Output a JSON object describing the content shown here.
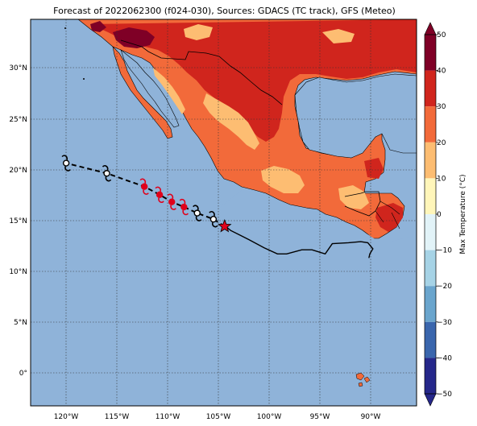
{
  "title": "Forecast of 2022062300 (f024-030), Sources: GDACS (TC track), GFS (Meteo)",
  "colors": {
    "ocean": "#8fb3d9",
    "lake": "#8fb3d9",
    "border": "#000000",
    "track_past": "#000000",
    "track_forecast_marker": "#e0001b",
    "star": "#e0001b"
  },
  "colorbar": {
    "label": "Max Temperature (°C)",
    "ticks": [
      "50",
      "40",
      "30",
      "20",
      "10",
      "0",
      "−10",
      "−20",
      "−30",
      "−40",
      "−50"
    ],
    "bands": [
      {
        "range": [
          40,
          50
        ],
        "color": "#7f0026"
      },
      {
        "range": [
          30,
          40
        ],
        "color": "#d0251d"
      },
      {
        "range": [
          20,
          30
        ],
        "color": "#f26a3a"
      },
      {
        "range": [
          10,
          20
        ],
        "color": "#fdbd72"
      },
      {
        "range": [
          0,
          10
        ],
        "color": "#fff6ba"
      },
      {
        "range": [
          -10,
          0
        ],
        "color": "#e2f3f8"
      },
      {
        "range": [
          -20,
          -10
        ],
        "color": "#a6d3e6"
      },
      {
        "range": [
          -30,
          -20
        ],
        "color": "#6aa5cd"
      },
      {
        "range": [
          -40,
          -30
        ],
        "color": "#3a66ad"
      },
      {
        "range": [
          -50,
          -40
        ],
        "color": "#25278a"
      }
    ]
  },
  "axes": {
    "x_ticks": [
      "120°W",
      "115°W",
      "110°W",
      "105°W",
      "100°W",
      "95°W",
      "90°W"
    ],
    "y_ticks": [
      "30°N",
      "25°N",
      "20°N",
      "15°N",
      "10°N",
      "5°N",
      "0°"
    ]
  },
  "map_extent": {
    "lon_min": -123.5,
    "lon_max": -85.5,
    "lat_min": -3.3,
    "lat_max": 34.6
  },
  "track": {
    "observed": [
      [
        -104.3,
        14.3
      ],
      [
        -103.8,
        13.9
      ],
      [
        -103.0,
        13.5
      ],
      [
        -102.0,
        13.0
      ],
      [
        -100.5,
        12.2
      ],
      [
        -99.2,
        11.6
      ],
      [
        -98.3,
        11.6
      ],
      [
        -96.8,
        12.0
      ],
      [
        -95.8,
        12.0
      ],
      [
        -94.5,
        11.6
      ],
      [
        -93.8,
        12.6
      ],
      [
        -92.2,
        12.7
      ],
      [
        -91.0,
        12.8
      ],
      [
        -90.3,
        12.7
      ],
      [
        -89.8,
        12.1
      ],
      [
        -90.1,
        11.6
      ],
      [
        -90.2,
        11.2
      ]
    ],
    "current": [
      -104.4,
      14.3
    ],
    "forecast_points": [
      {
        "lon": -120.0,
        "lat": 20.5,
        "marker": "outline"
      },
      {
        "lon": -116.0,
        "lat": 19.5,
        "marker": "outline"
      },
      {
        "lon": -112.3,
        "lat": 18.2,
        "marker": "filled"
      },
      {
        "lon": -110.8,
        "lat": 17.4,
        "marker": "filled"
      },
      {
        "lon": -109.6,
        "lat": 16.7,
        "marker": "filled"
      },
      {
        "lon": -108.4,
        "lat": 16.2,
        "marker": "filled"
      },
      {
        "lon": -107.1,
        "lat": 15.6,
        "marker": "outline"
      },
      {
        "lon": -105.5,
        "lat": 15.0,
        "marker": "outline"
      }
    ]
  }
}
